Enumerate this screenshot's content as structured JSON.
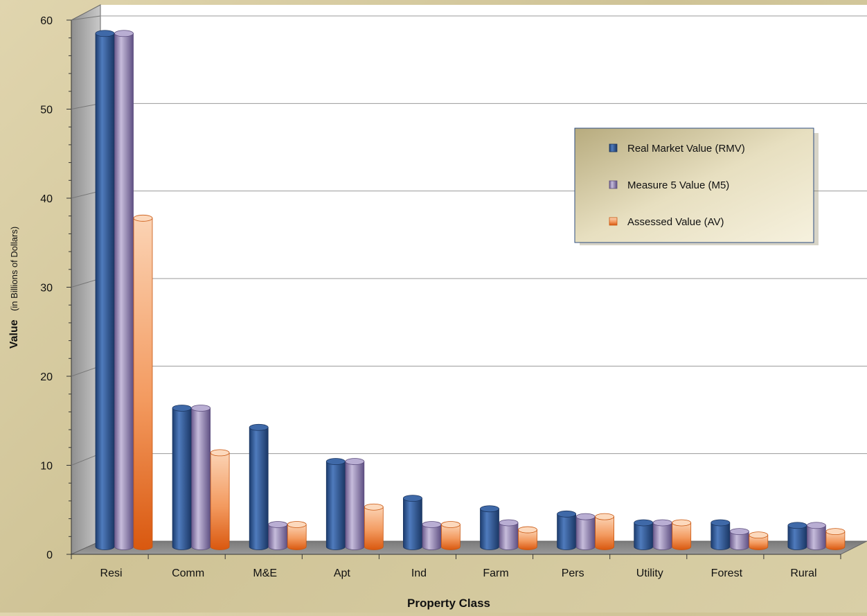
{
  "chart_data": {
    "type": "bar",
    "title": "",
    "xlabel": "Property Class",
    "ylabel_main": "Value",
    "ylabel_sub": "(in Billions of Dollars)",
    "ylim": [
      0,
      60
    ],
    "yticks": [
      0,
      10,
      20,
      30,
      40,
      50,
      60
    ],
    "grid": true,
    "legend_position": "right",
    "categories": [
      "Resi",
      "Comm",
      "M&E",
      "Apt",
      "Ind",
      "Farm",
      "Pers",
      "Utility",
      "Forest",
      "Rural"
    ],
    "series": [
      {
        "name": "Real Market Value (RMV)",
        "color": "#2f5a94",
        "values": [
          58,
          15.2,
          13,
          9.1,
          4.9,
          3.7,
          3.1,
          2.1,
          2.1,
          1.8
        ]
      },
      {
        "name": "Measure 5 Value (M5)",
        "color": "#8f7fb0",
        "values": [
          58,
          15.2,
          1.9,
          9.1,
          1.9,
          2.1,
          2.8,
          2.1,
          1.1,
          1.8
        ]
      },
      {
        "name": "Assessed Value (AV)",
        "color": "#f08a4b",
        "values": [
          36.9,
          10.1,
          1.9,
          3.9,
          1.9,
          1.3,
          2.8,
          2.1,
          0.7,
          1.1
        ]
      }
    ]
  }
}
